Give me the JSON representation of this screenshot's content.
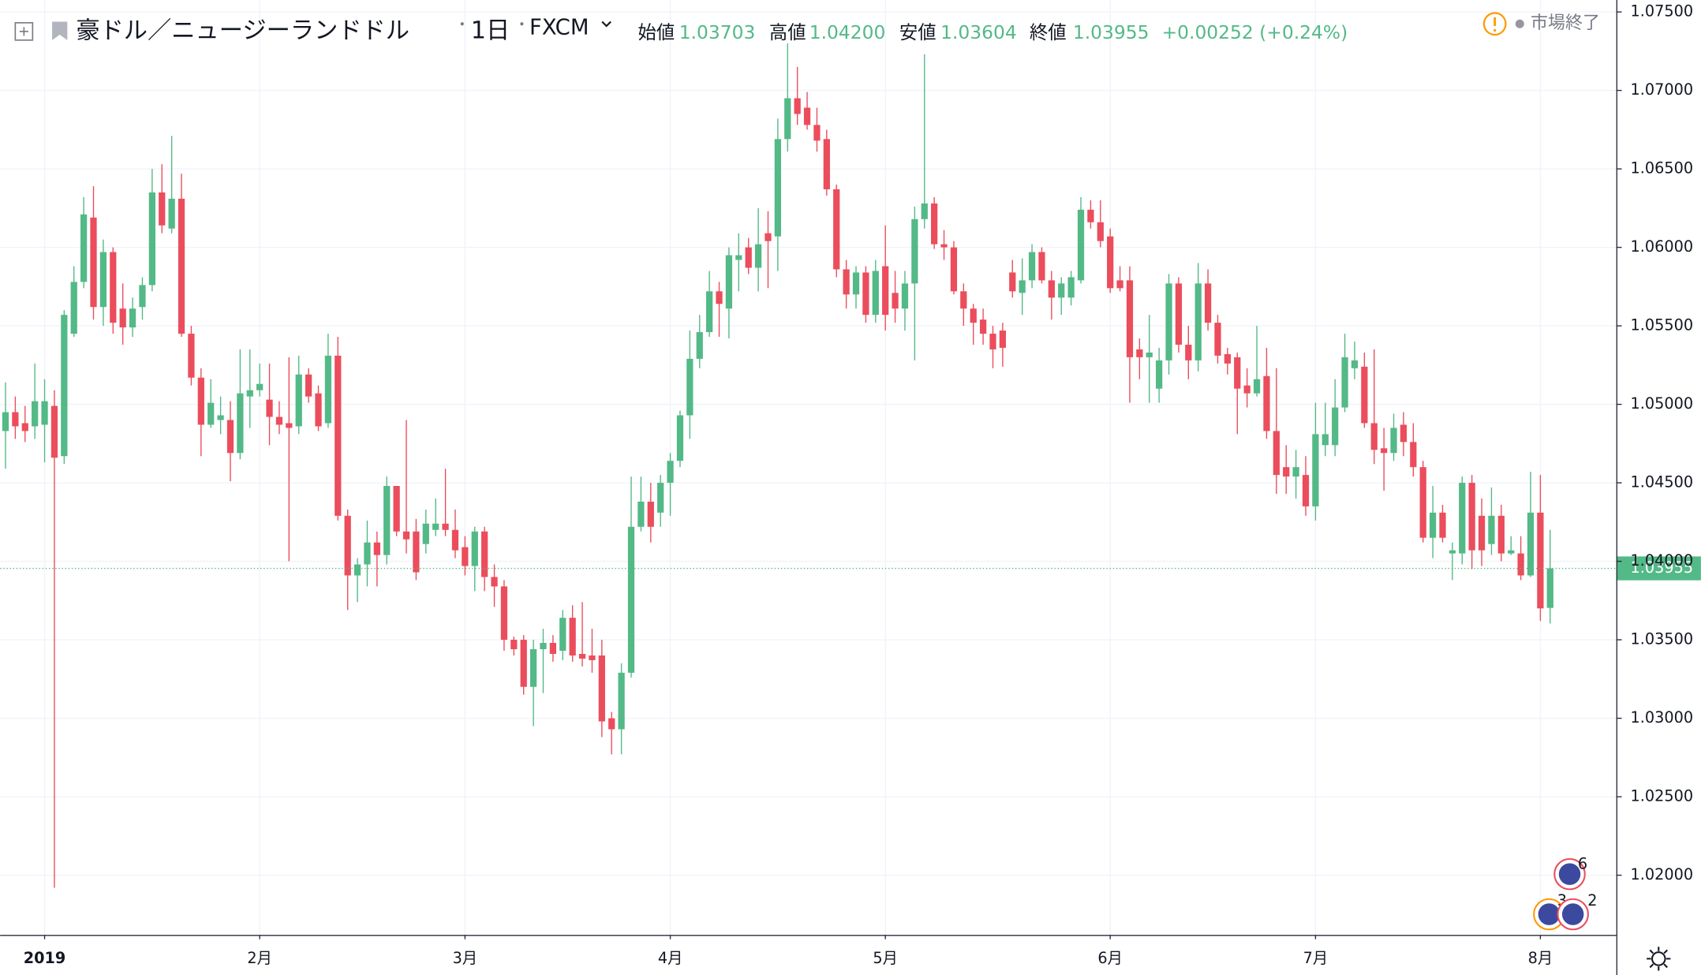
{
  "header": {
    "symbol": "豪ドル／ニュージーランドドル",
    "interval": "1日",
    "source": "FXCM",
    "open_label": "始値",
    "open": "1.03703",
    "high_label": "高値",
    "high": "1.04200",
    "low_label": "安値",
    "low": "1.03604",
    "close_label": "終値",
    "close": "1.03955",
    "change": "+0.00252 (+0.24%)",
    "status": "市場終了"
  },
  "events": [
    "6",
    "3",
    "2"
  ],
  "chart_data": {
    "type": "candlestick",
    "up_color": "#53b987",
    "down_color": "#eb4d5c",
    "grid": true,
    "ylim": [
      1.0162,
      1.07576
    ],
    "yticks": [
      {
        "value": 1.075,
        "label": "1.07500"
      },
      {
        "value": 1.07,
        "label": "1.07000"
      },
      {
        "value": 1.065,
        "label": "1.06500"
      },
      {
        "value": 1.06,
        "label": "1.06000"
      },
      {
        "value": 1.055,
        "label": "1.05500"
      },
      {
        "value": 1.05,
        "label": "1.05000"
      },
      {
        "value": 1.045,
        "label": "1.04500"
      },
      {
        "value": 1.04,
        "label": "1.04000"
      },
      {
        "value": 1.035,
        "label": "1.03500"
      },
      {
        "value": 1.03,
        "label": "1.03000"
      },
      {
        "value": 1.025,
        "label": "1.02500"
      },
      {
        "value": 1.02,
        "label": "1.02000"
      }
    ],
    "last_price": {
      "value": 1.03955,
      "label": "1.03955"
    },
    "categories": [
      null,
      null,
      null,
      null,
      "2019",
      null,
      null,
      null,
      null,
      null,
      null,
      null,
      null,
      null,
      null,
      null,
      null,
      null,
      null,
      null,
      null,
      null,
      null,
      null,
      null,
      null,
      "2月",
      null,
      null,
      null,
      null,
      null,
      null,
      null,
      null,
      null,
      null,
      null,
      null,
      null,
      null,
      null,
      null,
      null,
      null,
      null,
      null,
      "3月",
      null,
      null,
      null,
      null,
      null,
      null,
      null,
      null,
      null,
      null,
      null,
      null,
      null,
      null,
      null,
      null,
      null,
      null,
      null,
      null,
      "4月",
      null,
      null,
      null,
      null,
      null,
      null,
      null,
      null,
      null,
      null,
      null,
      null,
      null,
      null,
      null,
      null,
      null,
      null,
      null,
      null,
      null,
      "5月",
      null,
      null,
      null,
      null,
      null,
      null,
      null,
      null,
      null,
      null,
      null,
      null,
      null,
      null,
      null,
      null,
      null,
      null,
      null,
      null,
      null,
      null,
      "6月",
      null,
      null,
      null,
      null,
      null,
      null,
      null,
      null,
      null,
      null,
      null,
      null,
      null,
      null,
      null,
      null,
      null,
      null,
      null,
      null,
      "7月",
      null,
      null,
      null,
      null,
      null,
      null,
      null,
      null,
      null,
      null,
      null,
      null,
      null,
      null,
      null,
      null,
      null,
      null,
      null,
      null,
      null,
      null,
      "8月",
      null
    ],
    "open": [
      1.0483,
      1.0495,
      1.0488,
      1.0486,
      1.0487,
      1.0499,
      1.0467,
      1.0545,
      1.0578,
      1.0619,
      1.0562,
      1.0597,
      1.0561,
      1.0549,
      1.0562,
      1.0576,
      1.0635,
      1.0612,
      1.0631,
      1.0545,
      1.0517,
      1.0487,
      1.049,
      1.049,
      1.0469,
      1.0505,
      1.0509,
      1.0503,
      1.0492,
      1.0488,
      1.0486,
      1.0519,
      1.0507,
      1.0488,
      1.0531,
      1.0429,
      1.0391,
      1.0398,
      1.0412,
      1.0404,
      1.0448,
      1.0419,
      1.0419,
      1.0411,
      1.042,
      1.0424,
      1.042,
      1.0409,
      1.0397,
      1.0419,
      1.039,
      1.0384,
      1.035,
      1.035,
      1.032,
      1.0344,
      1.0348,
      1.0343,
      1.0364,
      1.0341,
      1.034,
      1.034,
      1.03,
      1.0293,
      1.0329,
      1.0422,
      1.0438,
      1.0431,
      1.045,
      1.0464,
      1.0493,
      1.0529,
      1.0546,
      1.0572,
      1.0561,
      1.0592,
      1.06,
      1.0587,
      1.0609,
      1.0607,
      1.0669,
      1.0695,
      1.0689,
      1.0678,
      1.0669,
      1.0637,
      1.0586,
      1.057,
      1.0584,
      1.0557,
      1.0588,
      1.0571,
      1.0561,
      1.0577,
      1.0618,
      1.0628,
      1.0602,
      1.06,
      1.0572,
      1.0561,
      1.0554,
      1.0545,
      1.0547,
      1.0584,
      1.0571,
      1.0579,
      1.0597,
      1.0579,
      1.0568,
      1.0568,
      1.0579,
      1.0624,
      1.0616,
      1.0607,
      1.0579,
      1.0579,
      1.0535,
      1.053,
      1.051,
      1.0528,
      1.0577,
      1.0538,
      1.0528,
      1.0577,
      1.0552,
      1.0532,
      1.053,
      1.0512,
      1.0507,
      1.0518,
      1.0483,
      1.046,
      1.0454,
      1.0455,
      1.0435,
      1.0474,
      1.0474,
      1.0498,
      1.0523,
      1.0524,
      1.0488,
      1.0472,
      1.0469,
      1.0487,
      1.0476,
      1.046,
      1.0415,
      1.0431,
      1.0405,
      1.0405,
      1.045,
      1.0429,
      1.0411,
      1.0429,
      1.0405,
      1.0405,
      1.0391,
      1.0431,
      1.03703
    ],
    "high": [
      1.0514,
      1.0505,
      1.0499,
      1.0526,
      1.0516,
      1.0509,
      1.056,
      1.0588,
      1.0632,
      1.0639,
      1.0605,
      1.06,
      1.0577,
      1.0568,
      1.0581,
      1.065,
      1.0653,
      1.0671,
      1.0647,
      1.055,
      1.0523,
      1.0516,
      1.0505,
      1.0502,
      1.0535,
      1.0535,
      1.0526,
      1.0526,
      1.0502,
      1.053,
      1.0531,
      1.0523,
      1.0512,
      1.0545,
      1.0543,
      1.0433,
      1.0402,
      1.0426,
      1.0419,
      1.0454,
      1.0448,
      1.049,
      1.0427,
      1.0433,
      1.044,
      1.0459,
      1.0433,
      1.0416,
      1.0422,
      1.0422,
      1.0398,
      1.0388,
      1.0352,
      1.0353,
      1.035,
      1.0357,
      1.0353,
      1.0369,
      1.0372,
      1.0374,
      1.0357,
      1.035,
      1.0304,
      1.0335,
      1.0454,
      1.0454,
      1.045,
      1.0455,
      1.0469,
      1.0496,
      1.0547,
      1.0557,
      1.0585,
      1.0578,
      1.06,
      1.0609,
      1.0606,
      1.0625,
      1.0623,
      1.0682,
      1.073,
      1.0715,
      1.0699,
      1.0689,
      1.0675,
      1.064,
      1.0592,
      1.0588,
      1.0588,
      1.0592,
      1.0614,
      1.0585,
      1.0585,
      1.0626,
      1.0723,
      1.0632,
      1.0611,
      1.0604,
      1.0577,
      1.0564,
      1.0561,
      1.055,
      1.0552,
      1.0592,
      1.0593,
      1.0602,
      1.06,
      1.0585,
      1.0581,
      1.0585,
      1.0632,
      1.063,
      1.063,
      1.0612,
      1.0588,
      1.0588,
      1.0542,
      1.0557,
      1.0536,
      1.0583,
      1.0581,
      1.055,
      1.059,
      1.0586,
      1.0557,
      1.0536,
      1.0533,
      1.0523,
      1.055,
      1.0536,
      1.0523,
      1.0474,
      1.0471,
      1.0467,
      1.0501,
      1.0501,
      1.0516,
      1.0545,
      1.054,
      1.0533,
      1.0535,
      1.0485,
      1.0494,
      1.0495,
      1.0488,
      1.0464,
      1.0448,
      1.0436,
      1.0412,
      1.0454,
      1.0455,
      1.044,
      1.0447,
      1.0436,
      1.0416,
      1.0416,
      1.0457,
      1.0455,
      1.042
    ],
    "low": [
      1.0459,
      1.0478,
      1.0476,
      1.0478,
      1.0463,
      1.0192,
      1.0462,
      1.0543,
      1.0574,
      1.0554,
      1.055,
      1.0545,
      1.0538,
      1.0543,
      1.0554,
      1.0572,
      1.0609,
      1.0609,
      1.0543,
      1.0512,
      1.0467,
      1.0485,
      1.0481,
      1.0451,
      1.0465,
      1.0485,
      1.0505,
      1.0474,
      1.0481,
      1.04,
      1.0481,
      1.0501,
      1.0483,
      1.0485,
      1.0426,
      1.0369,
      1.0374,
      1.0384,
      1.0384,
      1.0398,
      1.0416,
      1.0405,
      1.0388,
      1.0405,
      1.0416,
      1.0416,
      1.0402,
      1.0391,
      1.0381,
      1.0381,
      1.0371,
      1.0343,
      1.034,
      1.0315,
      1.0295,
      1.0316,
      1.0336,
      1.0337,
      1.0336,
      1.0333,
      1.0329,
      1.0288,
      1.0277,
      1.0277,
      1.0326,
      1.0419,
      1.0412,
      1.0422,
      1.0429,
      1.046,
      1.0478,
      1.0523,
      1.0543,
      1.0543,
      1.0542,
      1.0572,
      1.0583,
      1.0572,
      1.0574,
      1.0585,
      1.0661,
      1.0678,
      1.0675,
      1.0661,
      1.0633,
      1.0581,
      1.0561,
      1.0561,
      1.0552,
      1.0552,
      1.0547,
      1.0552,
      1.0547,
      1.0528,
      1.0612,
      1.0599,
      1.0592,
      1.057,
      1.055,
      1.0538,
      1.0538,
      1.0523,
      1.0524,
      1.0568,
      1.0557,
      1.0574,
      1.0577,
      1.0554,
      1.0557,
      1.0563,
      1.0577,
      1.0612,
      1.06,
      1.0571,
      1.0572,
      1.0501,
      1.0516,
      1.0501,
      1.0501,
      1.0519,
      1.0533,
      1.0516,
      1.0521,
      1.0547,
      1.0526,
      1.0519,
      1.0481,
      1.0498,
      1.0505,
      1.0478,
      1.0443,
      1.0443,
      1.044,
      1.0429,
      1.0426,
      1.0467,
      1.0467,
      1.0495,
      1.0516,
      1.0485,
      1.0462,
      1.0445,
      1.0464,
      1.0467,
      1.0454,
      1.0412,
      1.0402,
      1.0412,
      1.0388,
      1.0398,
      1.0395,
      1.0397,
      1.0404,
      1.04,
      1.0404,
      1.0388,
      1.039,
      1.0362,
      1.03604
    ],
    "close": [
      1.0495,
      1.0486,
      1.0483,
      1.0502,
      1.0502,
      1.0466,
      1.0557,
      1.0578,
      1.0621,
      1.0562,
      1.0597,
      1.0552,
      1.0549,
      1.0561,
      1.0576,
      1.0635,
      1.0614,
      1.0631,
      1.0545,
      1.0517,
      1.0487,
      1.0501,
      1.0493,
      1.0469,
      1.0507,
      1.0509,
      1.0513,
      1.0492,
      1.0487,
      1.0485,
      1.0519,
      1.0505,
      1.0486,
      1.0531,
      1.0429,
      1.0391,
      1.0398,
      1.0412,
      1.0404,
      1.0448,
      1.0419,
      1.0414,
      1.0393,
      1.0424,
      1.0424,
      1.042,
      1.0407,
      1.0397,
      1.0419,
      1.039,
      1.0384,
      1.035,
      1.0344,
      1.032,
      1.0344,
      1.0348,
      1.0341,
      1.0364,
      1.034,
      1.0338,
      1.0337,
      1.0298,
      1.0293,
      1.0329,
      1.0422,
      1.0438,
      1.0422,
      1.045,
      1.0464,
      1.0493,
      1.0529,
      1.0546,
      1.0572,
      1.0564,
      1.0595,
      1.0595,
      1.0587,
      1.0602,
      1.0604,
      1.0669,
      1.0695,
      1.0685,
      1.0678,
      1.0668,
      1.0637,
      1.0586,
      1.057,
      1.0584,
      1.0557,
      1.0585,
      1.0557,
      1.0561,
      1.0577,
      1.0618,
      1.0628,
      1.0602,
      1.06,
      1.0572,
      1.0561,
      1.0552,
      1.0545,
      1.0535,
      1.0536,
      1.0572,
      1.0579,
      1.0597,
      1.0579,
      1.0568,
      1.0577,
      1.0581,
      1.0624,
      1.0616,
      1.0604,
      1.0574,
      1.0574,
      1.053,
      1.053,
      1.0533,
      1.0528,
      1.0577,
      1.0538,
      1.0528,
      1.0577,
      1.0552,
      1.0531,
      1.0526,
      1.051,
      1.0507,
      1.0516,
      1.0483,
      1.0455,
      1.0454,
      1.046,
      1.0435,
      1.0481,
      1.0481,
      1.0498,
      1.053,
      1.0528,
      1.0488,
      1.0471,
      1.0469,
      1.0485,
      1.0476,
      1.046,
      1.0415,
      1.0431,
      1.0415,
      1.0407,
      1.045,
      1.0407,
      1.0407,
      1.0429,
      1.0405,
      1.0407,
      1.0391,
      1.0431,
      1.037,
      1.03955
    ]
  }
}
